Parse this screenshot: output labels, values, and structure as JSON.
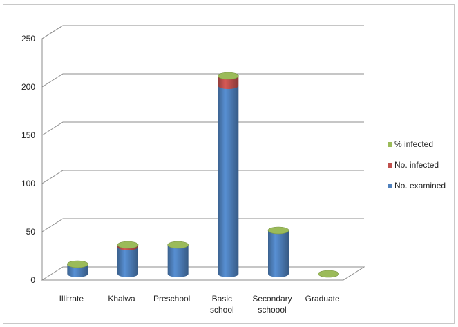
{
  "chart_data": {
    "type": "bar",
    "categories": [
      [
        "Illitrate"
      ],
      [
        "Khalwa"
      ],
      [
        "Preschool"
      ],
      [
        "Basic",
        "school"
      ],
      [
        "Secondary",
        "schoool"
      ],
      [
        "Graduate"
      ]
    ],
    "series": [
      {
        "name": "No. examined",
        "color": "#4f81bd",
        "values": [
          10,
          28,
          30,
          195,
          45,
          0
        ]
      },
      {
        "name": "No. infected",
        "color": "#c0504d",
        "values": [
          0,
          2,
          0,
          10,
          0,
          0
        ]
      },
      {
        "name": "% infected",
        "color": "#9bbb59",
        "values": [
          0,
          0,
          0,
          0,
          0,
          0
        ]
      }
    ],
    "ylim": [
      0,
      250
    ],
    "yticks": [
      0,
      50,
      100,
      150,
      200,
      250
    ],
    "stacked": true,
    "three_d": true,
    "grid": true,
    "legend_position": "right"
  }
}
